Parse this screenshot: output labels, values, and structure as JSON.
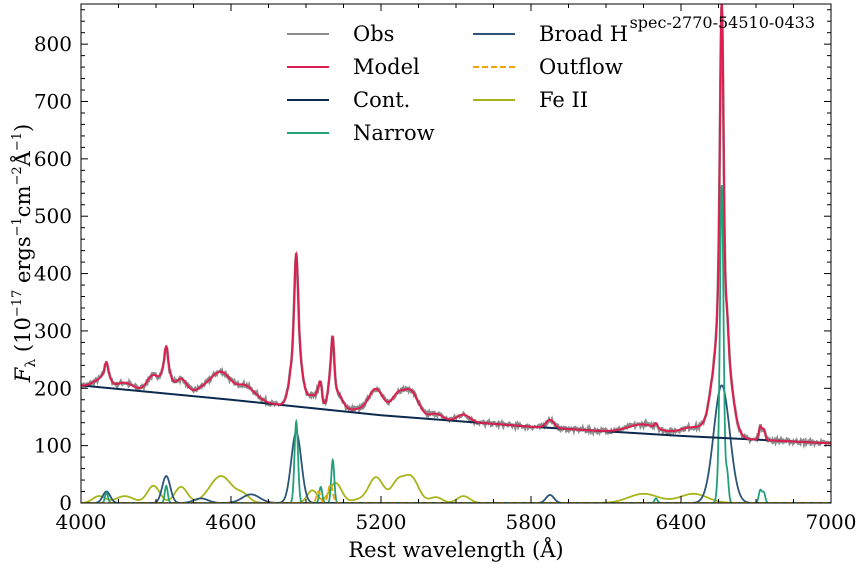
{
  "chart_data": {
    "type": "line",
    "annotation": "spec-2770-54510-0433",
    "xlabel": "Rest wavelength (Å)",
    "ylabel": "F_λ (10^-17 ergs^-1cm^-2Å^-1)",
    "ylabel_parts": {
      "base": "F",
      "sub": "λ",
      "open": " (10",
      "exp1": "−17",
      "mid1": " ergs",
      "exp2": "−1",
      "mid2": "cm",
      "exp3": "−2",
      "unit": "Å",
      "exp4": "−1",
      "close": ")"
    },
    "xlim": [
      4000,
      7000
    ],
    "ylim": [
      0,
      870
    ],
    "xticks": [
      4000,
      4600,
      5200,
      5800,
      6400,
      7000
    ],
    "yticks": [
      0,
      100,
      200,
      300,
      400,
      500,
      600,
      700,
      800
    ],
    "grid": false,
    "legend": {
      "location": "top-center",
      "columns": 2,
      "entries": [
        {
          "name": "Obs",
          "color": "#8c8c8c",
          "style": "solid"
        },
        {
          "name": "Model",
          "color": "#dc1f4f",
          "style": "solid"
        },
        {
          "name": "Cont.",
          "color": "#0b2a4e",
          "style": "solid"
        },
        {
          "name": "Narrow",
          "color": "#23a07a",
          "style": "solid"
        },
        {
          "name": "Broad H",
          "color": "#2c5478",
          "style": "solid"
        },
        {
          "name": "Outflow",
          "color": "#f5a300",
          "style": "dashed"
        },
        {
          "name": "Fe II",
          "color": "#a7b51a",
          "style": "solid"
        }
      ]
    },
    "continuum": {
      "points": [
        [
          4000,
          205
        ],
        [
          4600,
          180
        ],
        [
          5200,
          153
        ],
        [
          5800,
          133
        ],
        [
          6400,
          117
        ],
        [
          7000,
          104
        ]
      ]
    },
    "narrow_lines": [
      {
        "center": 4102,
        "amp": 18,
        "sigma": 6
      },
      {
        "center": 4341,
        "amp": 30,
        "sigma": 6
      },
      {
        "center": 4861,
        "amp": 142,
        "sigma": 7
      },
      {
        "center": 4959,
        "amp": 28,
        "sigma": 6
      },
      {
        "center": 5007,
        "amp": 75,
        "sigma": 6
      },
      {
        "center": 6300,
        "amp": 8,
        "sigma": 6
      },
      {
        "center": 6548,
        "amp": 28,
        "sigma": 6
      },
      {
        "center": 6563,
        "amp": 553,
        "sigma": 7
      },
      {
        "center": 6584,
        "amp": 55,
        "sigma": 6
      },
      {
        "center": 6717,
        "amp": 22,
        "sigma": 6
      },
      {
        "center": 6731,
        "amp": 18,
        "sigma": 6
      }
    ],
    "broad_lines": [
      {
        "center": 4102,
        "amp": 20,
        "sigma": 15
      },
      {
        "center": 4341,
        "amp": 47,
        "sigma": 16
      },
      {
        "center": 4480,
        "amp": 8,
        "sigma": 28
      },
      {
        "center": 4680,
        "amp": 15,
        "sigma": 35
      },
      {
        "center": 4861,
        "amp": 123,
        "sigma": 20
      },
      {
        "center": 5876,
        "amp": 14,
        "sigma": 16
      },
      {
        "center": 6563,
        "amp": 205,
        "sigma": 32
      }
    ],
    "outflow_lines": [
      {
        "center": 4950,
        "amp": 20,
        "sigma": 8
      },
      {
        "center": 4998,
        "amp": 33,
        "sigma": 9
      }
    ],
    "feii_bumps": [
      {
        "center": 4072,
        "amp": 12,
        "sigma": 25
      },
      {
        "center": 4175,
        "amp": 12,
        "sigma": 35
      },
      {
        "center": 4290,
        "amp": 30,
        "sigma": 25
      },
      {
        "center": 4400,
        "amp": 28,
        "sigma": 25
      },
      {
        "center": 4560,
        "amp": 47,
        "sigma": 45
      },
      {
        "center": 4650,
        "amp": 12,
        "sigma": 25
      },
      {
        "center": 4925,
        "amp": 22,
        "sigma": 20
      },
      {
        "center": 5018,
        "amp": 35,
        "sigma": 25
      },
      {
        "center": 5105,
        "amp": 5,
        "sigma": 25
      },
      {
        "center": 5180,
        "amp": 45,
        "sigma": 30
      },
      {
        "center": 5265,
        "amp": 33,
        "sigma": 25
      },
      {
        "center": 5320,
        "amp": 45,
        "sigma": 30
      },
      {
        "center": 5420,
        "amp": 10,
        "sigma": 25
      },
      {
        "center": 5530,
        "amp": 12,
        "sigma": 25
      },
      {
        "center": 6250,
        "amp": 16,
        "sigma": 60
      },
      {
        "center": 6450,
        "amp": 16,
        "sigma": 55
      }
    ],
    "obs_noise": {
      "amplitude": 4,
      "sample_step": 3
    }
  }
}
